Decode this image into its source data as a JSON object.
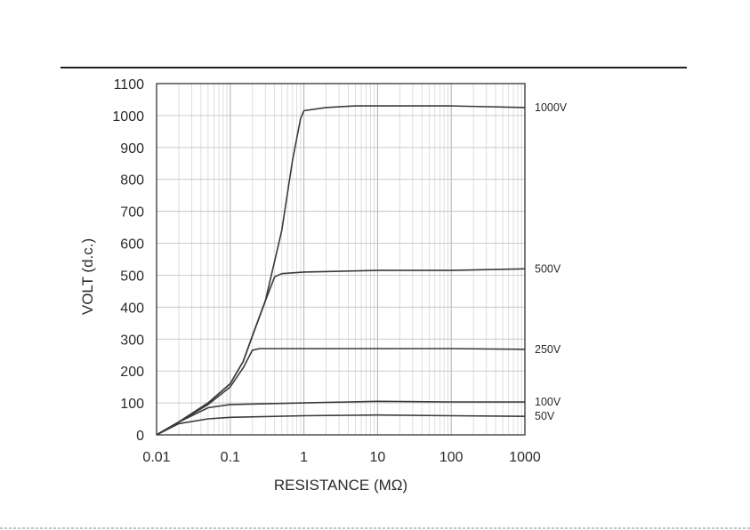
{
  "chart_data": {
    "type": "line",
    "xlabel": "RESISTANCE (MΩ)",
    "ylabel": "VOLT (d.c.)",
    "x_scale": "log",
    "xlim": [
      0.01,
      1000
    ],
    "ylim": [
      0,
      1100
    ],
    "x_ticks": [
      "0.01",
      "0.1",
      "1",
      "10",
      "100",
      "1000"
    ],
    "y_ticks": [
      "0",
      "100",
      "200",
      "300",
      "400",
      "500",
      "600",
      "700",
      "800",
      "900",
      "1000",
      "1100"
    ],
    "grid": true,
    "series": [
      {
        "name": "1000V",
        "x": [
          0.01,
          0.02,
          0.05,
          0.1,
          0.15,
          0.2,
          0.3,
          0.5,
          0.7,
          0.9,
          1,
          2,
          5,
          10,
          100,
          1000
        ],
        "y": [
          0,
          40,
          100,
          160,
          230,
          310,
          420,
          640,
          860,
          990,
          1015,
          1025,
          1030,
          1030,
          1030,
          1025
        ]
      },
      {
        "name": "500V",
        "x": [
          0.01,
          0.02,
          0.05,
          0.1,
          0.15,
          0.2,
          0.3,
          0.4,
          0.5,
          1,
          10,
          100,
          1000
        ],
        "y": [
          0,
          40,
          100,
          160,
          230,
          310,
          420,
          495,
          505,
          510,
          515,
          515,
          520
        ]
      },
      {
        "name": "250V",
        "x": [
          0.01,
          0.02,
          0.05,
          0.1,
          0.15,
          0.2,
          0.25,
          1,
          10,
          100,
          1000
        ],
        "y": [
          0,
          40,
          95,
          150,
          210,
          265,
          270,
          270,
          270,
          270,
          268
        ]
      },
      {
        "name": "100V",
        "x": [
          0.01,
          0.02,
          0.05,
          0.1,
          1,
          10,
          100,
          1000
        ],
        "y": [
          0,
          40,
          85,
          95,
          100,
          105,
          103,
          103
        ]
      },
      {
        "name": "50V",
        "x": [
          0.01,
          0.02,
          0.05,
          0.1,
          1,
          10,
          100,
          1000
        ],
        "y": [
          0,
          35,
          50,
          55,
          60,
          62,
          60,
          58
        ]
      }
    ]
  }
}
